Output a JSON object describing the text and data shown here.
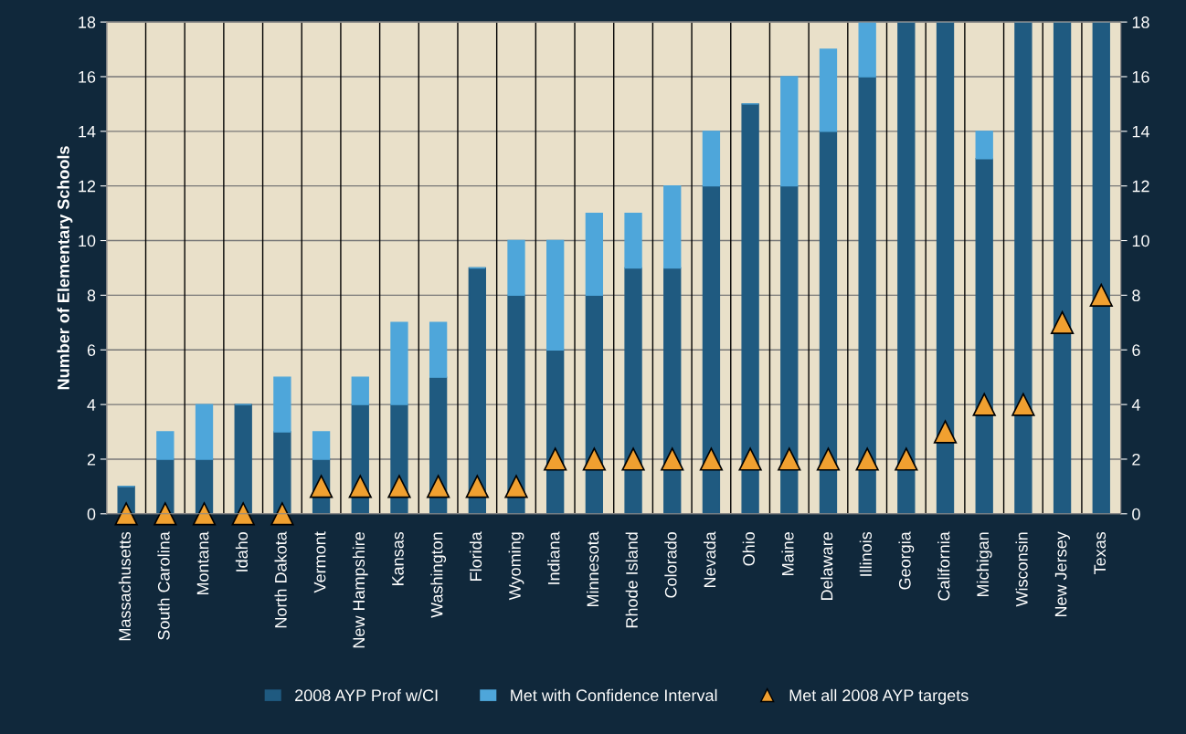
{
  "chart_data": {
    "type": "bar",
    "stacked": true,
    "ylabel": "Number of Elementary Schools",
    "categories": [
      "Massachusetts",
      "South Carolina",
      "Montana",
      "Idaho",
      "North Dakota",
      "Vermont",
      "New Hampshire",
      "Kansas",
      "Washington",
      "Florida",
      "Wyoming",
      "Indiana",
      "Minnesota",
      "Rhode Island",
      "Colorado",
      "Nevada",
      "Ohio",
      "Maine",
      "Delaware",
      "Illinois",
      "Georgia",
      "California",
      "Michigan",
      "Wisconsin",
      "New Jersey",
      "Texas"
    ],
    "series": [
      {
        "name": "2008 AYP Prof w/CI",
        "color": "#1f5a80",
        "values": [
          1,
          2,
          2,
          4,
          3,
          2,
          4,
          4,
          5,
          9,
          8,
          6,
          8,
          9,
          9,
          12,
          15,
          12,
          14,
          16,
          18,
          18,
          13,
          18,
          18,
          18
        ]
      },
      {
        "name": "Met with Confidence Interval",
        "color": "#4ea6da",
        "values": [
          0,
          1,
          2,
          0,
          2,
          1,
          1,
          3,
          2,
          0,
          2,
          4,
          3,
          2,
          3,
          2,
          0,
          4,
          3,
          2,
          0,
          0,
          1,
          0,
          0,
          0
        ]
      },
      {
        "name": "Met all 2008 AYP targets",
        "type": "scatter",
        "marker": "triangle",
        "color": "#f0a030",
        "values": [
          0,
          0,
          0,
          0,
          0,
          1,
          1,
          1,
          1,
          1,
          1,
          2,
          2,
          2,
          2,
          2,
          2,
          2,
          2,
          2,
          2,
          3,
          4,
          4,
          7,
          8
        ]
      }
    ],
    "ylim": [
      0,
      18
    ],
    "yticks": [
      0,
      2,
      4,
      6,
      8,
      10,
      12,
      14,
      16,
      18
    ],
    "y2lim": [
      0,
      18
    ],
    "y2ticks": [
      0,
      2,
      4,
      6,
      8,
      10,
      12,
      14,
      16,
      18
    ],
    "grid": true,
    "legend": "bottom"
  }
}
